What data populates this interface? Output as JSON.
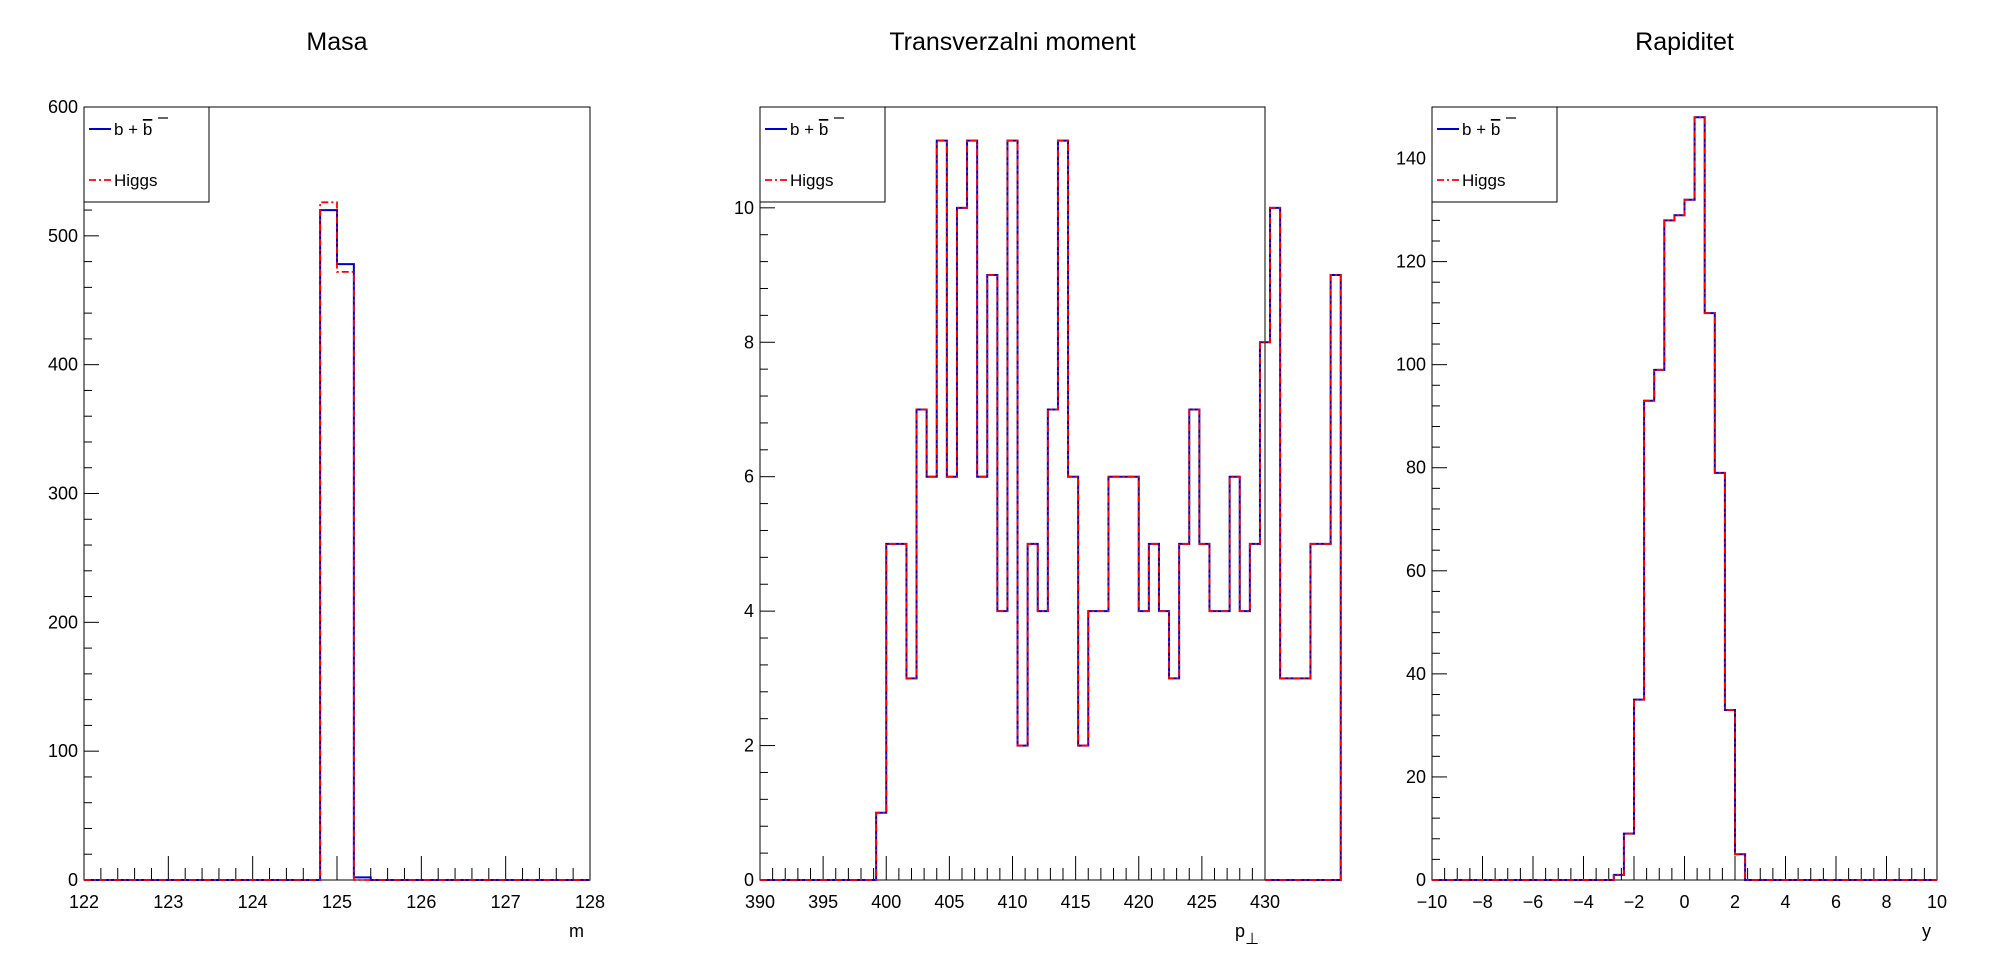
{
  "colors": {
    "bbbar": "#0000cc",
    "higgs": "#ff0000"
  },
  "chart_data": [
    {
      "type": "histogram",
      "title": "Masa",
      "xlabel": "m",
      "ylabel": "",
      "xlim": [
        122,
        128
      ],
      "ylim": [
        0,
        600
      ],
      "xticks": [
        122,
        123,
        124,
        125,
        126,
        127,
        128
      ],
      "yticks": [
        0,
        100,
        200,
        300,
        400,
        500,
        600
      ],
      "bin_edges": [
        124.8,
        125.0,
        125.2,
        125.4
      ],
      "series": [
        {
          "name": "b + b̄",
          "values": [
            520,
            478,
            2
          ]
        },
        {
          "name": "Higgs",
          "values": [
            526,
            472,
            0
          ]
        }
      ],
      "legend": {
        "position": "top-left",
        "entries": [
          {
            "base": "b + ",
            "bar": "b"
          },
          {
            "label": "Higgs"
          }
        ]
      }
    },
    {
      "type": "histogram",
      "title": "Transverzalni moment",
      "xlabel": "p",
      "xlabel_sub": "⊥",
      "ylabel": "",
      "xlim": [
        390,
        430
      ],
      "ylim": [
        0,
        11.5
      ],
      "xticks": [
        390,
        395,
        400,
        405,
        410,
        415,
        420,
        425,
        430
      ],
      "yticks": [
        0,
        2,
        4,
        6,
        8,
        10
      ],
      "bin_start": 399.2,
      "bin_width": 0.8,
      "series": [
        {
          "name": "b + b̄",
          "values": [
            1,
            5,
            5,
            3,
            7,
            6,
            11,
            6,
            10,
            11,
            6,
            9,
            4,
            11,
            2,
            5,
            4,
            7,
            11,
            6,
            2,
            4,
            4,
            6,
            6,
            6,
            4,
            5,
            4,
            3,
            5,
            7,
            5,
            4,
            4,
            6,
            4,
            5,
            8,
            10,
            3,
            3,
            3,
            5,
            5,
            9
          ]
        },
        {
          "name": "Higgs",
          "values": [
            1,
            5,
            5,
            3,
            7,
            6,
            11,
            6,
            10,
            11,
            6,
            9,
            4,
            11,
            2,
            5,
            4,
            7,
            11,
            6,
            2,
            4,
            4,
            6,
            6,
            6,
            4,
            5,
            4,
            3,
            5,
            7,
            5,
            4,
            4,
            6,
            4,
            5,
            8,
            10,
            3,
            3,
            3,
            5,
            5,
            9
          ]
        }
      ],
      "legend": {
        "position": "top-left",
        "entries": [
          {
            "base": "b + ",
            "bar": "b"
          },
          {
            "label": "Higgs"
          }
        ]
      }
    },
    {
      "type": "histogram",
      "title": "Rapiditet",
      "xlabel": "y",
      "ylabel": "",
      "xlim": [
        -10,
        10
      ],
      "ylim": [
        0,
        150
      ],
      "xticks": [
        -10,
        -8,
        -6,
        -4,
        -2,
        0,
        2,
        4,
        6,
        8,
        10
      ],
      "xtick_labels": [
        "−10",
        "−8",
        "−6",
        "−4",
        "−2",
        "0",
        "2",
        "4",
        "6",
        "8",
        "10"
      ],
      "yticks": [
        0,
        20,
        40,
        60,
        80,
        100,
        120,
        140
      ],
      "bin_start": -2.8,
      "bin_width": 0.4,
      "series": [
        {
          "name": "b + b̄",
          "values": [
            1,
            9,
            35,
            93,
            99,
            128,
            129,
            132,
            148,
            110,
            79,
            33,
            5,
            0
          ]
        },
        {
          "name": "Higgs",
          "values": [
            1,
            9,
            35,
            93,
            99,
            128,
            129,
            132,
            148,
            110,
            79,
            33,
            5,
            0
          ]
        }
      ],
      "legend": {
        "position": "top-left",
        "entries": [
          {
            "base": "b + ",
            "bar": "b"
          },
          {
            "label": "Higgs"
          }
        ]
      }
    }
  ]
}
